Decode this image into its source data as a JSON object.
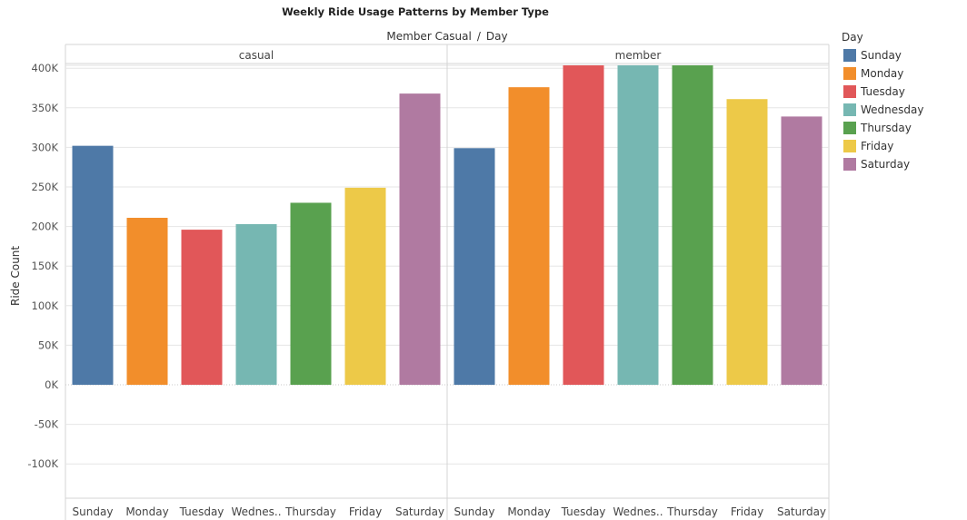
{
  "chart_data": {
    "type": "bar",
    "title": "Weekly Ride Usage Patterns by Member Type",
    "header": {
      "field1": "Member Casual",
      "separator": "/",
      "field2": "Day"
    },
    "ylabel": "Ride Count",
    "ylim": [
      -150000,
      415000
    ],
    "yticks": [
      {
        "value": 400000,
        "label": "400K"
      },
      {
        "value": 350000,
        "label": "350K"
      },
      {
        "value": 300000,
        "label": "300K"
      },
      {
        "value": 250000,
        "label": "250K"
      },
      {
        "value": 200000,
        "label": "200K"
      },
      {
        "value": 150000,
        "label": "150K"
      },
      {
        "value": 100000,
        "label": "100K"
      },
      {
        "value": 50000,
        "label": "50K"
      },
      {
        "value": 0,
        "label": "0K"
      },
      {
        "value": -50000,
        "label": "-50K"
      },
      {
        "value": -100000,
        "label": "-100K"
      }
    ],
    "categories": [
      "Sunday",
      "Monday",
      "Tuesday",
      "Wednes..",
      "Thursday",
      "Friday",
      "Saturday"
    ],
    "colors": [
      "#4e79a7",
      "#f28e2b",
      "#e15759",
      "#76b7b2",
      "#59a14f",
      "#edc948",
      "#b07aa1"
    ],
    "panels": [
      {
        "name": "casual",
        "values": [
          302000,
          211000,
          196000,
          203000,
          230000,
          249000,
          368000
        ]
      },
      {
        "name": "member",
        "values": [
          299000,
          376000,
          408000,
          408000,
          408000,
          361000,
          339000
        ]
      }
    ],
    "legend": {
      "title": "Day",
      "position": "right",
      "items": [
        "Sunday",
        "Monday",
        "Tuesday",
        "Wednesday",
        "Thursday",
        "Friday",
        "Saturday"
      ]
    },
    "grid": true
  }
}
